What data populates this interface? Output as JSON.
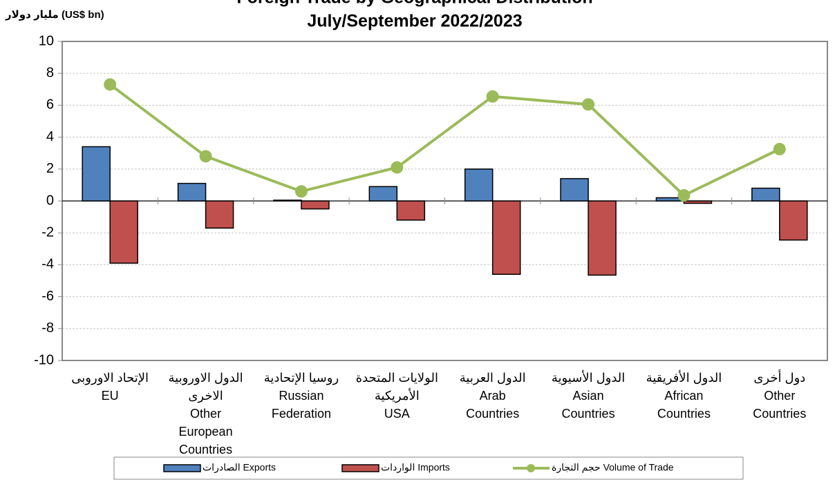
{
  "chart_data": {
    "type": "bar_line",
    "title": "Foreign Trade by Geographical Distribution",
    "subtitle": "July/September 2022/2023",
    "y_label": "مليار دولار (US$ bn)",
    "categories": [
      [
        "الإتحاد الاوروبى",
        "EU"
      ],
      [
        "الدول الاوروبية",
        "الاخرى",
        "Other",
        "European",
        "Countries"
      ],
      [
        "روسيا الإتحادية",
        "Russian",
        "Federation"
      ],
      [
        "الولايات المتحدة",
        "الأمريكية",
        "USA"
      ],
      [
        "الدول العربية",
        "Arab",
        "Countries"
      ],
      [
        "الدول الأسيوية",
        "Asian",
        "Countries"
      ],
      [
        "الدول الأفريقية",
        "African",
        "Countries"
      ],
      [
        "دول أخرى",
        "Other",
        "Countries"
      ]
    ],
    "series": [
      {
        "name": "الصادرات  Exports",
        "type": "bar",
        "color": "#4f81bd",
        "values": [
          3.4,
          1.1,
          0.05,
          0.9,
          2.0,
          1.4,
          0.2,
          0.8
        ]
      },
      {
        "name": "الواردات Imports",
        "type": "bar",
        "color": "#c0504d",
        "values": [
          -3.9,
          -1.7,
          -0.5,
          -1.2,
          -4.6,
          -4.65,
          -0.15,
          -2.45
        ]
      },
      {
        "name": "حجم التجارة Volume of Trade",
        "type": "line",
        "color": "#9bbb59",
        "values": [
          7.3,
          2.8,
          0.6,
          2.1,
          6.55,
          6.05,
          0.35,
          3.25
        ]
      }
    ],
    "ylim": [
      -10,
      10
    ],
    "yticks": [
      -10,
      -8,
      -6,
      -4,
      -2,
      0,
      2,
      4,
      6,
      8,
      10
    ],
    "grid": true
  }
}
